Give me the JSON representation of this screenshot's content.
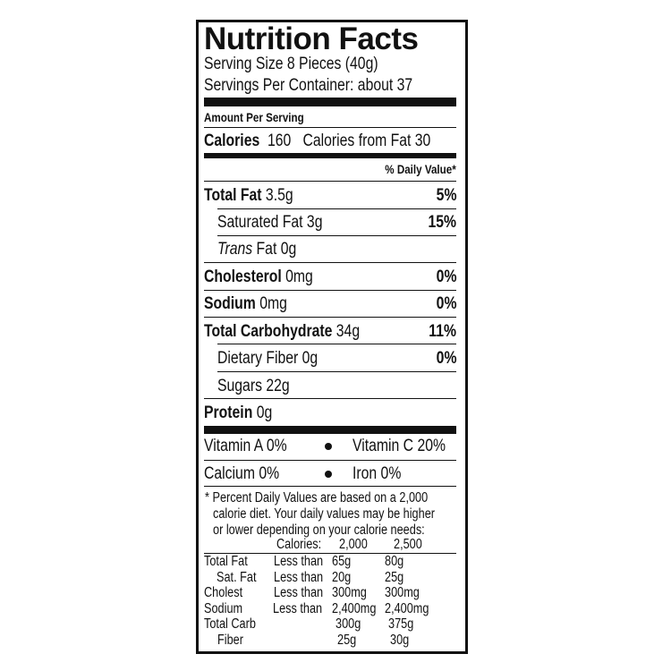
{
  "title": "Nutrition Facts",
  "serving_size": "Serving Size 8 Pieces (40g)",
  "servings_per_container": "Servings Per Container: about 37",
  "amount_per_serving": "Amount Per Serving",
  "calories": {
    "label": "Calories",
    "value": "160",
    "from_fat": "Calories from Fat 30"
  },
  "daily_value_header": "% Daily Value*",
  "nutrients": [
    {
      "name": "Total Fat",
      "amount": "3.5g",
      "dv": "5%"
    },
    {
      "name": "Saturated Fat",
      "amount": "3g",
      "dv": "15%"
    },
    {
      "name": "Trans",
      "name2": "Fat",
      "amount": "0g",
      "dv": ""
    },
    {
      "name": "Cholesterol",
      "amount": "0mg",
      "dv": "0%"
    },
    {
      "name": "Sodium",
      "amount": "0mg",
      "dv": "0%"
    },
    {
      "name": "Total Carbohydrate",
      "amount": "34g",
      "dv": "11%"
    },
    {
      "name": "Dietary Fiber",
      "amount": "0g",
      "dv": "0%"
    },
    {
      "name": "Sugars",
      "amount": "22g",
      "dv": ""
    },
    {
      "name": "Protein",
      "amount": "0g",
      "dv": ""
    }
  ],
  "vitamins": [
    {
      "left": "Vitamin A 0%",
      "right": "Vitamin C 20%"
    },
    {
      "left": "Calcium 0%",
      "right": "Iron 0%"
    }
  ],
  "footnote": [
    "* Percent Daily Values are based on a 2,000",
    "calorie diet. Your daily values may be higher",
    "or lower depending on your calorie needs:"
  ],
  "reference_table": {
    "header": {
      "label": "Calories:",
      "col1": "2,000",
      "col2": "2,500"
    },
    "rows": [
      {
        "name": "Total Fat",
        "limit": "Less than",
        "v1": "65g",
        "v2": "80g"
      },
      {
        "name": "Sat. Fat",
        "limit": "Less than",
        "v1": "20g",
        "v2": "25g"
      },
      {
        "name": "Cholest",
        "limit": "Less than",
        "v1": "300mg",
        "v2": "300mg"
      },
      {
        "name": "Sodium",
        "limit": "Less than",
        "v1": "2,400mg",
        "v2": "2,400mg"
      },
      {
        "name": "Total Carb",
        "limit": "",
        "v1": "300g",
        "v2": "375g"
      },
      {
        "name": "Fiber",
        "limit": "",
        "v1": "25g",
        "v2": "30g"
      }
    ]
  }
}
